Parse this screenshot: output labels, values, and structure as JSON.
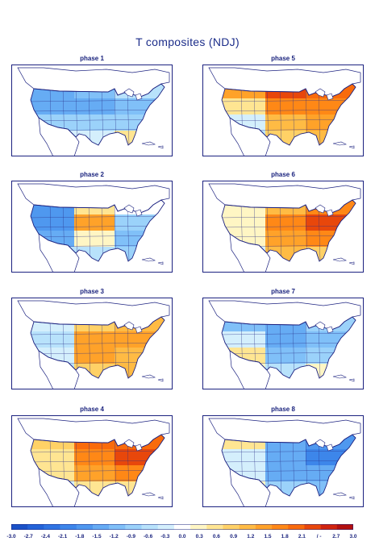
{
  "title": "T composites (NDJ)",
  "panels": [
    {
      "label": "phase 1",
      "base": -1.5,
      "anoms": [
        -1.6,
        -1.2,
        -0.6,
        -1.4,
        -1.4,
        -1.1,
        -0.9,
        -1.0,
        -0.8,
        -0.3,
        -0.2,
        0.6
      ]
    },
    {
      "label": "phase 2",
      "base": -0.6,
      "anoms": [
        -1.7,
        0.6,
        0.0,
        -1.8,
        1.5,
        -1.0,
        -1.4,
        0.3,
        -1.2,
        -0.6,
        -0.6,
        -0.8
      ]
    },
    {
      "label": "phase 3",
      "base": 0.3,
      "anoms": [
        -0.4,
        0.9,
        1.2,
        -0.6,
        1.4,
        1.6,
        -0.3,
        1.4,
        1.2,
        -0.6,
        0.8,
        1.2
      ]
    },
    {
      "label": "phase 4",
      "base": 0.9,
      "anoms": [
        0.9,
        2.1,
        2.2,
        0.6,
        1.8,
        2.4,
        0.6,
        1.4,
        1.8,
        -0.3,
        0.6,
        0.6
      ]
    },
    {
      "label": "phase 5",
      "base": 1.2,
      "anoms": [
        1.5,
        2.4,
        2.0,
        0.6,
        1.8,
        1.8,
        -0.3,
        1.2,
        1.5,
        -0.6,
        0.8,
        1.2
      ]
    },
    {
      "label": "phase 6",
      "base": 0.9,
      "anoms": [
        0.3,
        1.2,
        1.8,
        0.3,
        1.8,
        2.4,
        0.3,
        1.5,
        1.8,
        -0.3,
        1.2,
        0.9
      ]
    },
    {
      "label": "phase 7",
      "base": -0.9,
      "anoms": [
        -1.2,
        -1.4,
        -1.0,
        -0.3,
        -1.6,
        -1.2,
        0.6,
        -1.2,
        -0.9,
        0.3,
        -0.6,
        0.4
      ]
    },
    {
      "label": "phase 8",
      "base": -0.9,
      "anoms": [
        0.6,
        -1.6,
        -1.9,
        -0.3,
        -1.4,
        -2.0,
        -0.3,
        -1.4,
        -1.6,
        0.3,
        -0.9,
        -1.2
      ]
    }
  ],
  "colorbar": {
    "ticks": [
      "-3.0",
      "-2.7",
      "-2.4",
      "-2.1",
      "-1.8",
      "-1.5",
      "-1.2",
      "-0.9",
      "-0.6",
      "-0.3",
      "0.0",
      "0.3",
      "0.6",
      "0.9",
      "1.2",
      "1.5",
      "1.8",
      "2.1",
      "/ -",
      "2.7",
      "3.0"
    ],
    "colors": [
      "#1a52c7",
      "#2363d8",
      "#2f74e3",
      "#3d86ea",
      "#4f98ef",
      "#66acf4",
      "#80c0f8",
      "#9bd2fa",
      "#b8e2fb",
      "#d4effc",
      "#ffffff",
      "#fff6c4",
      "#ffe592",
      "#ffd166",
      "#ffbb44",
      "#ffa229",
      "#ff8816",
      "#f96b0c",
      "#e8470b",
      "#d1240e",
      "#b3100f"
    ]
  }
}
